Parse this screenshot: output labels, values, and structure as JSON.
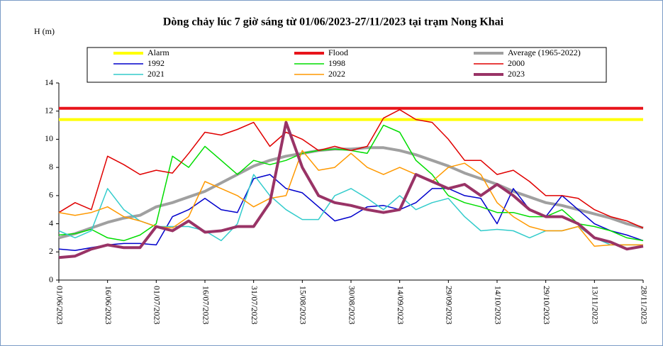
{
  "chart_data": {
    "type": "line",
    "title": "Dòng chảy lúc 7 giờ sáng từ 01/06/2023-27/11/2023 tại trạm Nong Khai",
    "y_label": "H (m)",
    "x": [
      "01/06/2023",
      "06/06/2023",
      "11/06/2023",
      "16/06/2023",
      "21/06/2023",
      "26/06/2023",
      "01/07/2023",
      "06/07/2023",
      "11/07/2023",
      "16/07/2023",
      "21/07/2023",
      "26/07/2023",
      "31/07/2023",
      "05/08/2023",
      "10/08/2023",
      "15/08/2023",
      "20/08/2023",
      "25/08/2023",
      "30/08/2023",
      "04/09/2023",
      "09/09/2023",
      "14/09/2023",
      "19/09/2023",
      "24/09/2023",
      "29/09/2023",
      "04/10/2023",
      "09/10/2023",
      "14/10/2023",
      "19/10/2023",
      "24/10/2023",
      "29/10/2023",
      "03/11/2023",
      "08/11/2023",
      "13/11/2023",
      "18/11/2023",
      "23/11/2023",
      "28/11/2023"
    ],
    "xticks": [
      "01/06/2023",
      "16/06/2023",
      "01/07/2023",
      "16/07/2023",
      "31/07/2023",
      "15/08/2023",
      "30/08/2023",
      "14/09/2023",
      "29/09/2023",
      "14/10/2023",
      "29/10/2023",
      "13/11/2023",
      "28/11/2023"
    ],
    "ylim": [
      0,
      14
    ],
    "yticks": [
      0,
      2,
      4,
      6,
      8,
      10,
      12,
      14
    ],
    "reference_lines": [
      {
        "name": "Alarm",
        "color": "#ffff00",
        "value": 11.4
      },
      {
        "name": "Flood",
        "color": "#e8141b",
        "value": 12.2
      }
    ],
    "series": [
      {
        "name": "Average (1965-2022)",
        "color": "#a0a0a0",
        "emphasis": true,
        "values": [
          3.0,
          3.3,
          3.7,
          4.1,
          4.4,
          4.6,
          5.2,
          5.5,
          5.9,
          6.3,
          6.9,
          7.5,
          8.1,
          8.5,
          8.8,
          9.0,
          9.2,
          9.3,
          9.3,
          9.4,
          9.4,
          9.2,
          8.9,
          8.5,
          8.1,
          7.6,
          7.2,
          6.8,
          6.3,
          5.9,
          5.5,
          5.3,
          5.0,
          4.7,
          4.4,
          4.0,
          3.7
        ]
      },
      {
        "name": "1992",
        "color": "#0000cc",
        "values": [
          2.2,
          2.1,
          2.3,
          2.5,
          2.6,
          2.6,
          2.5,
          4.5,
          5.0,
          5.8,
          5.0,
          4.8,
          7.2,
          7.5,
          6.5,
          6.2,
          5.2,
          4.2,
          4.5,
          5.2,
          5.3,
          5.0,
          5.5,
          6.5,
          6.5,
          6.0,
          5.8,
          4.0,
          6.5,
          5.0,
          4.5,
          6.0,
          5.0,
          4.0,
          3.5,
          3.2,
          2.8
        ]
      },
      {
        "name": "1998",
        "color": "#00dd00",
        "values": [
          3.2,
          3.3,
          3.6,
          3.0,
          2.8,
          3.2,
          4.0,
          8.8,
          8.0,
          9.5,
          8.5,
          7.5,
          8.5,
          8.2,
          8.5,
          9.0,
          9.2,
          9.3,
          9.2,
          9.0,
          11.0,
          10.5,
          8.5,
          7.5,
          6.0,
          5.5,
          5.2,
          4.8,
          4.8,
          4.5,
          4.5,
          5.0,
          4.0,
          3.8,
          3.5,
          3.0,
          2.8
        ]
      },
      {
        "name": "2000",
        "color": "#e00000",
        "values": [
          4.8,
          5.5,
          5.0,
          8.8,
          8.2,
          7.5,
          7.8,
          7.6,
          9.0,
          10.5,
          10.3,
          10.7,
          11.2,
          9.5,
          10.5,
          10.0,
          9.2,
          9.5,
          9.2,
          9.5,
          11.5,
          12.1,
          11.4,
          11.2,
          10.0,
          8.5,
          8.5,
          7.5,
          7.8,
          7.0,
          6.0,
          6.0,
          5.8,
          5.0,
          4.5,
          4.2,
          3.7
        ]
      },
      {
        "name": "2021",
        "color": "#33cccc",
        "values": [
          3.5,
          3.0,
          3.5,
          6.5,
          5.0,
          4.2,
          3.8,
          3.8,
          3.8,
          3.5,
          2.8,
          4.0,
          7.5,
          6.0,
          5.0,
          4.3,
          4.3,
          6.0,
          6.5,
          5.8,
          5.0,
          6.0,
          5.0,
          5.5,
          5.8,
          4.5,
          3.5,
          3.6,
          3.5,
          3.0,
          3.5,
          3.5,
          3.8,
          3.0,
          2.5,
          2.5,
          2.5
        ]
      },
      {
        "name": "2022",
        "color": "#ff9900",
        "values": [
          4.8,
          4.6,
          4.8,
          5.2,
          4.5,
          4.2,
          3.8,
          3.7,
          4.5,
          7.0,
          6.5,
          6.0,
          5.2,
          5.8,
          6.0,
          9.2,
          7.8,
          8.0,
          9.0,
          8.0,
          7.5,
          8.0,
          7.5,
          7.0,
          8.0,
          8.3,
          7.5,
          5.5,
          4.5,
          3.8,
          3.5,
          3.5,
          3.8,
          2.4,
          2.5,
          2.5,
          2.5
        ]
      },
      {
        "name": "2023",
        "color": "#993366",
        "emphasis": true,
        "values": [
          1.6,
          1.7,
          2.2,
          2.5,
          2.3,
          2.3,
          3.8,
          3.5,
          4.2,
          3.4,
          3.5,
          3.8,
          3.8,
          5.5,
          11.2,
          8.0,
          6.0,
          5.5,
          5.3,
          5.0,
          4.8,
          5.0,
          7.5,
          7.0,
          6.5,
          6.8,
          6.0,
          6.8,
          6.0,
          5.0,
          4.5,
          4.5,
          4.0,
          3.0,
          2.7,
          2.2,
          2.4
        ]
      }
    ]
  }
}
